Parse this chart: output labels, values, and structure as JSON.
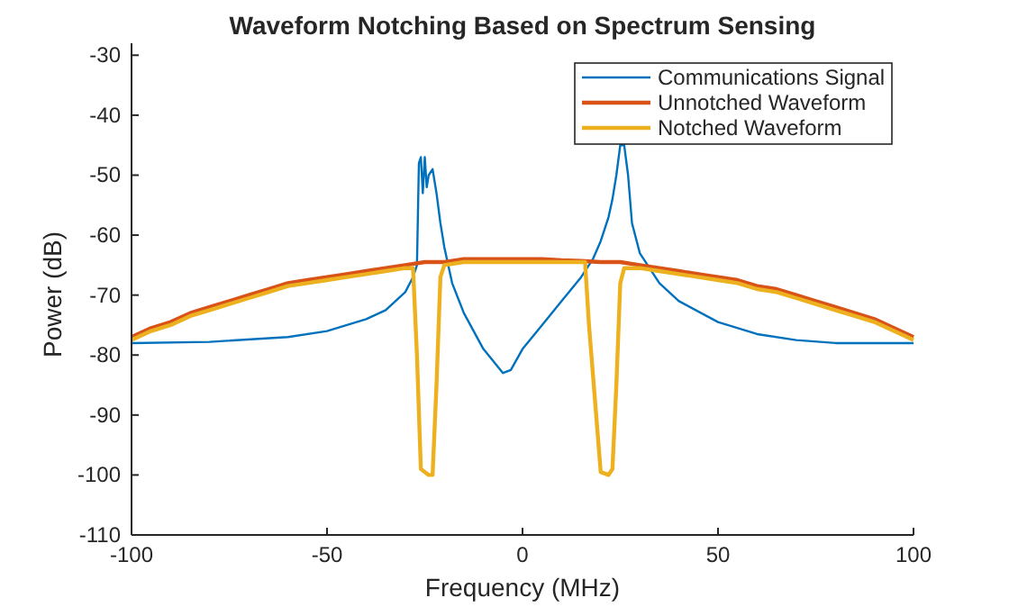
{
  "chart_data": {
    "type": "line",
    "title": "Waveform Notching Based on Spectrum Sensing",
    "xlabel": "Frequency (MHz)",
    "ylabel": "Power (dB)",
    "xlim": [
      -100,
      100
    ],
    "ylim": [
      -110,
      -28
    ],
    "xticks": [
      -100,
      -50,
      0,
      50,
      100
    ],
    "yticks": [
      -110,
      -100,
      -90,
      -80,
      -70,
      -60,
      -50,
      -40,
      -30
    ],
    "legend": "top right",
    "grid": false,
    "line_style": "solid",
    "marker": "none",
    "series": [
      {
        "name": "Communications Signal",
        "color": "#0072bd",
        "x": [
          -100,
          -80,
          -60,
          -50,
          -40,
          -35,
          -30,
          -28,
          -27,
          -26.5,
          -26,
          -25.5,
          -25,
          -24.5,
          -24,
          -23,
          -22,
          -21,
          -20,
          -18,
          -15,
          -10,
          -5,
          -3,
          0,
          5,
          10,
          15,
          18,
          20,
          22,
          23,
          24,
          25,
          26,
          27,
          28,
          30,
          35,
          40,
          50,
          60,
          70,
          80,
          100
        ],
        "values": [
          -78,
          -77.8,
          -77,
          -76,
          -74,
          -72.5,
          -69.5,
          -67,
          -65,
          -48,
          -47,
          -53,
          -47,
          -52,
          -50,
          -49,
          -53,
          -58,
          -62,
          -68,
          -73,
          -79,
          -83,
          -82.5,
          -79,
          -75,
          -71,
          -67,
          -64,
          -61,
          -57,
          -54,
          -50,
          -45,
          -45,
          -50,
          -58,
          -63,
          -68,
          -71,
          -74.5,
          -76.5,
          -77.5,
          -78,
          -78
        ]
      },
      {
        "name": "Unnotched Waveform",
        "color": "#d95319",
        "x": [
          -100,
          -95,
          -90,
          -85,
          -80,
          -75,
          -70,
          -65,
          -60,
          -55,
          -50,
          -45,
          -40,
          -35,
          -30,
          -25,
          -20,
          -15,
          -10,
          -5,
          0,
          5,
          10,
          15,
          20,
          25,
          30,
          35,
          40,
          45,
          50,
          55,
          60,
          65,
          70,
          75,
          80,
          85,
          90,
          95,
          100
        ],
        "values": [
          -77,
          -75.5,
          -74.5,
          -73,
          -72,
          -71,
          -70,
          -69,
          -68,
          -67.5,
          -67,
          -66.5,
          -66,
          -65.5,
          -65,
          -64.5,
          -64.5,
          -64,
          -64,
          -64,
          -64,
          -64,
          -64.2,
          -64.3,
          -64.5,
          -64.5,
          -65,
          -65.5,
          -66,
          -66.5,
          -67,
          -67.5,
          -68.5,
          -69,
          -70,
          -71,
          -72,
          -73,
          -74,
          -75.5,
          -77
        ]
      },
      {
        "name": "Notched Waveform",
        "color": "#edb120",
        "x": [
          -100,
          -95,
          -90,
          -85,
          -80,
          -75,
          -70,
          -65,
          -60,
          -55,
          -50,
          -45,
          -40,
          -35,
          -30,
          -28,
          -27,
          -26,
          -24,
          -23,
          -22,
          -21,
          -20,
          -15,
          -10,
          -5,
          0,
          5,
          10,
          15,
          16,
          17,
          20,
          22,
          23,
          24,
          25,
          26,
          30,
          35,
          40,
          45,
          50,
          55,
          60,
          65,
          70,
          75,
          80,
          85,
          90,
          95,
          100
        ],
        "values": [
          -77.5,
          -76,
          -75,
          -73.5,
          -72.5,
          -71.5,
          -70.5,
          -69.5,
          -68.5,
          -68,
          -67.5,
          -67,
          -66.5,
          -66,
          -65.5,
          -65.5,
          -80,
          -99,
          -100,
          -100,
          -85,
          -67,
          -65,
          -64.5,
          -64.5,
          -64.5,
          -64.5,
          -64.5,
          -64.5,
          -64.5,
          -64.5,
          -75,
          -99.5,
          -100,
          -99,
          -85,
          -68,
          -65.5,
          -65.5,
          -66,
          -66.5,
          -67,
          -67.5,
          -68,
          -69,
          -69.5,
          -70.5,
          -71.5,
          -72.5,
          -73.5,
          -74.5,
          -76,
          -77.5
        ]
      }
    ]
  }
}
